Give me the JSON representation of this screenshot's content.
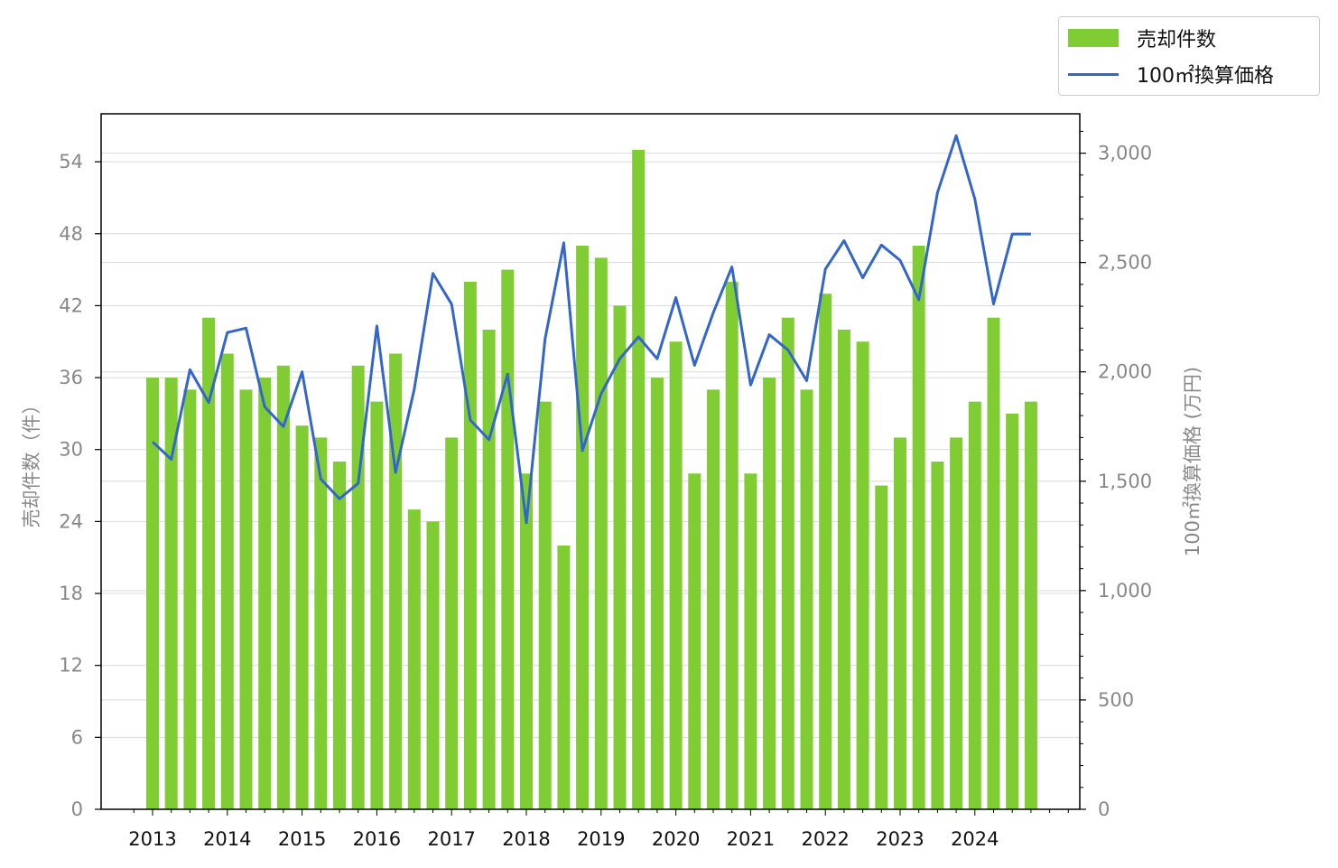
{
  "legend": {
    "bar_label": "売却件数",
    "line_label": "100㎡換算価格"
  },
  "chart_data": {
    "type": "bar",
    "xlabel": "",
    "ylabel": "売却件数（件）",
    "y2label": "100㎡換算価格 (万円)",
    "x_year_ticks": [
      "2013",
      "2014",
      "2015",
      "2016",
      "2017",
      "2018",
      "2019",
      "2020",
      "2021",
      "2022",
      "2023",
      "2024"
    ],
    "ylim": [
      0,
      58
    ],
    "yticks": [
      0,
      6,
      12,
      18,
      24,
      30,
      36,
      42,
      48,
      54
    ],
    "y2lim": [
      0,
      3180
    ],
    "y2ticks": [
      0,
      500,
      1000,
      1500,
      2000,
      2500,
      3000
    ],
    "y2tick_labels": [
      "0",
      "500",
      "1,000",
      "1,500",
      "2,000",
      "2,500",
      "3,000"
    ],
    "grid": "horizontal",
    "legend_position": "top-right",
    "series": [
      {
        "name": "売却件数",
        "type": "bar",
        "color": "#80cc33",
        "values": [
          36,
          36,
          35,
          41,
          38,
          35,
          36,
          37,
          32,
          31,
          29,
          37,
          34,
          38,
          25,
          24,
          31,
          44,
          40,
          45,
          28,
          34,
          22,
          47,
          46,
          42,
          55,
          36,
          39,
          28,
          35,
          44,
          28,
          36,
          41,
          35,
          43,
          40,
          39,
          27,
          31,
          47,
          29,
          31,
          34,
          41,
          33,
          34
        ]
      },
      {
        "name": "100㎡換算価格",
        "type": "line",
        "color": "#3366cc",
        "values": [
          1680,
          1600,
          2010,
          1860,
          2180,
          2200,
          1840,
          1750,
          2000,
          1510,
          1420,
          1490,
          2210,
          1540,
          1920,
          2450,
          2310,
          1780,
          1690,
          1990,
          1310,
          2150,
          2590,
          1640,
          1900,
          2060,
          2160,
          2060,
          2340,
          2030,
          2270,
          2480,
          1940,
          2170,
          2100,
          1960,
          2470,
          2600,
          2430,
          2580,
          2510,
          2330,
          2820,
          3080,
          2790,
          2310,
          2630,
          2630
        ]
      }
    ]
  }
}
